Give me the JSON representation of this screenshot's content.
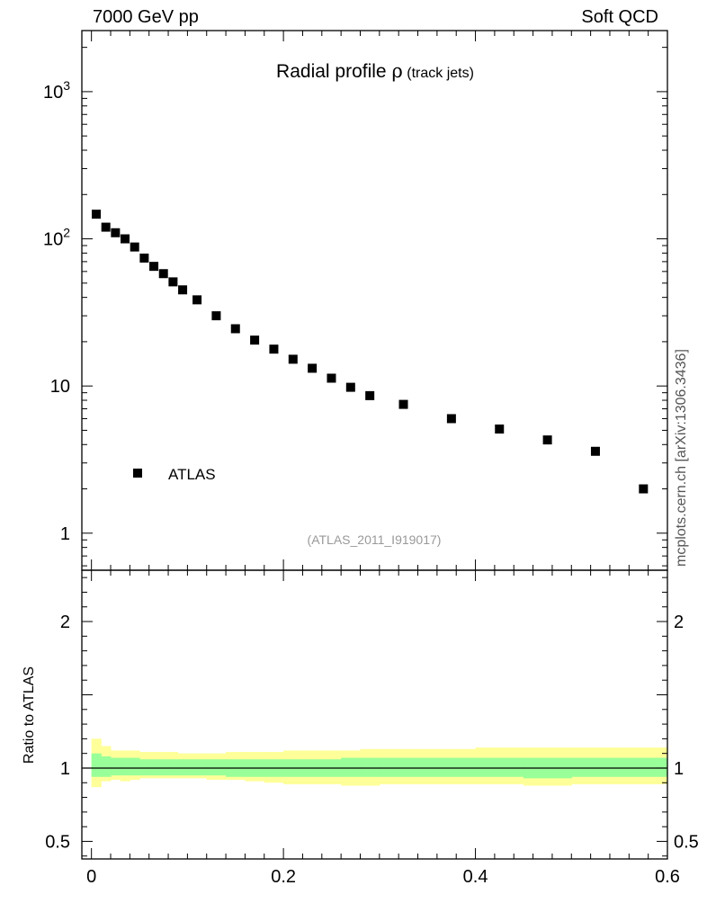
{
  "header": {
    "left": "7000 GeV pp",
    "right": "Soft QCD"
  },
  "side_label": "mcplots.cern.ch [arXiv:1306.3436]",
  "chart_data": {
    "type": "scatter",
    "title_main": "Radial profile ",
    "title_symbol": "ρ",
    "title_sub": " (track jets)",
    "analysis_tag": "(ATLAS_2011_I919017)",
    "legend": [
      {
        "name": "ATLAS",
        "marker": "square",
        "placement": "lower-left"
      }
    ],
    "main_panel": {
      "yscale": "log",
      "ylim": [
        0.56,
        2600
      ],
      "xlim": [
        -0.01,
        0.6
      ],
      "ytick_labels": [
        "1",
        "10",
        "10²",
        "10³"
      ],
      "yticks": [
        1,
        10,
        100,
        1000
      ],
      "series": [
        {
          "name": "ATLAS",
          "x": [
            0.005,
            0.015,
            0.025,
            0.035,
            0.045,
            0.055,
            0.065,
            0.075,
            0.085,
            0.095,
            0.11,
            0.13,
            0.15,
            0.17,
            0.19,
            0.21,
            0.23,
            0.25,
            0.27,
            0.29,
            0.325,
            0.375,
            0.425,
            0.475,
            0.525,
            0.575
          ],
          "y": [
            147,
            120,
            110,
            100,
            88,
            74,
            65,
            58,
            51,
            45,
            38.5,
            30,
            24.5,
            20.5,
            17.8,
            15.2,
            13.2,
            11.3,
            9.8,
            8.6,
            7.5,
            6.0,
            5.1,
            4.3,
            3.6,
            2.0
          ]
        }
      ]
    },
    "ratio_panel": {
      "ylabel": "Ratio to ATLAS",
      "ylim": [
        0.38,
        2.35
      ],
      "ytick_labels": [
        "0.5",
        "1",
        "2"
      ],
      "yticks": [
        0.5,
        1,
        2
      ],
      "reference": 1.0,
      "band_edges": [
        0,
        0.01,
        0.02,
        0.03,
        0.04,
        0.05,
        0.06,
        0.07,
        0.08,
        0.09,
        0.1,
        0.12,
        0.14,
        0.16,
        0.18,
        0.2,
        0.22,
        0.24,
        0.26,
        0.28,
        0.3,
        0.35,
        0.4,
        0.45,
        0.5,
        0.55,
        0.6
      ],
      "yellow_band": [
        [
          0.87,
          1.2
        ],
        [
          0.91,
          1.15
        ],
        [
          0.92,
          1.12
        ],
        [
          0.91,
          1.12
        ],
        [
          0.92,
          1.12
        ],
        [
          0.93,
          1.11
        ],
        [
          0.93,
          1.11
        ],
        [
          0.93,
          1.11
        ],
        [
          0.93,
          1.11
        ],
        [
          0.93,
          1.1
        ],
        [
          0.93,
          1.1
        ],
        [
          0.92,
          1.1
        ],
        [
          0.92,
          1.11
        ],
        [
          0.91,
          1.11
        ],
        [
          0.9,
          1.11
        ],
        [
          0.89,
          1.12
        ],
        [
          0.89,
          1.12
        ],
        [
          0.89,
          1.12
        ],
        [
          0.88,
          1.12
        ],
        [
          0.88,
          1.13
        ],
        [
          0.89,
          1.13
        ],
        [
          0.89,
          1.13
        ],
        [
          0.89,
          1.14
        ],
        [
          0.88,
          1.14
        ],
        [
          0.89,
          1.14
        ],
        [
          0.89,
          1.14
        ]
      ],
      "green_band": [
        [
          0.94,
          1.1
        ],
        [
          0.94,
          1.08
        ],
        [
          0.95,
          1.07
        ],
        [
          0.95,
          1.07
        ],
        [
          0.95,
          1.07
        ],
        [
          0.95,
          1.06
        ],
        [
          0.95,
          1.06
        ],
        [
          0.95,
          1.06
        ],
        [
          0.95,
          1.06
        ],
        [
          0.95,
          1.06
        ],
        [
          0.95,
          1.06
        ],
        [
          0.95,
          1.06
        ],
        [
          0.94,
          1.06
        ],
        [
          0.94,
          1.06
        ],
        [
          0.94,
          1.06
        ],
        [
          0.94,
          1.06
        ],
        [
          0.94,
          1.06
        ],
        [
          0.94,
          1.06
        ],
        [
          0.94,
          1.07
        ],
        [
          0.94,
          1.07
        ],
        [
          0.94,
          1.07
        ],
        [
          0.94,
          1.07
        ],
        [
          0.94,
          1.07
        ],
        [
          0.93,
          1.07
        ],
        [
          0.94,
          1.07
        ],
        [
          0.94,
          1.07
        ]
      ]
    },
    "xtick_labels": [
      "0",
      "0.2",
      "0.4",
      "0.6"
    ],
    "xticks": [
      0,
      0.2,
      0.4,
      0.6
    ],
    "colors": {
      "yellow": "#ffff99",
      "green": "#99ff99",
      "marker": "#000000",
      "tag": "#999999"
    }
  }
}
